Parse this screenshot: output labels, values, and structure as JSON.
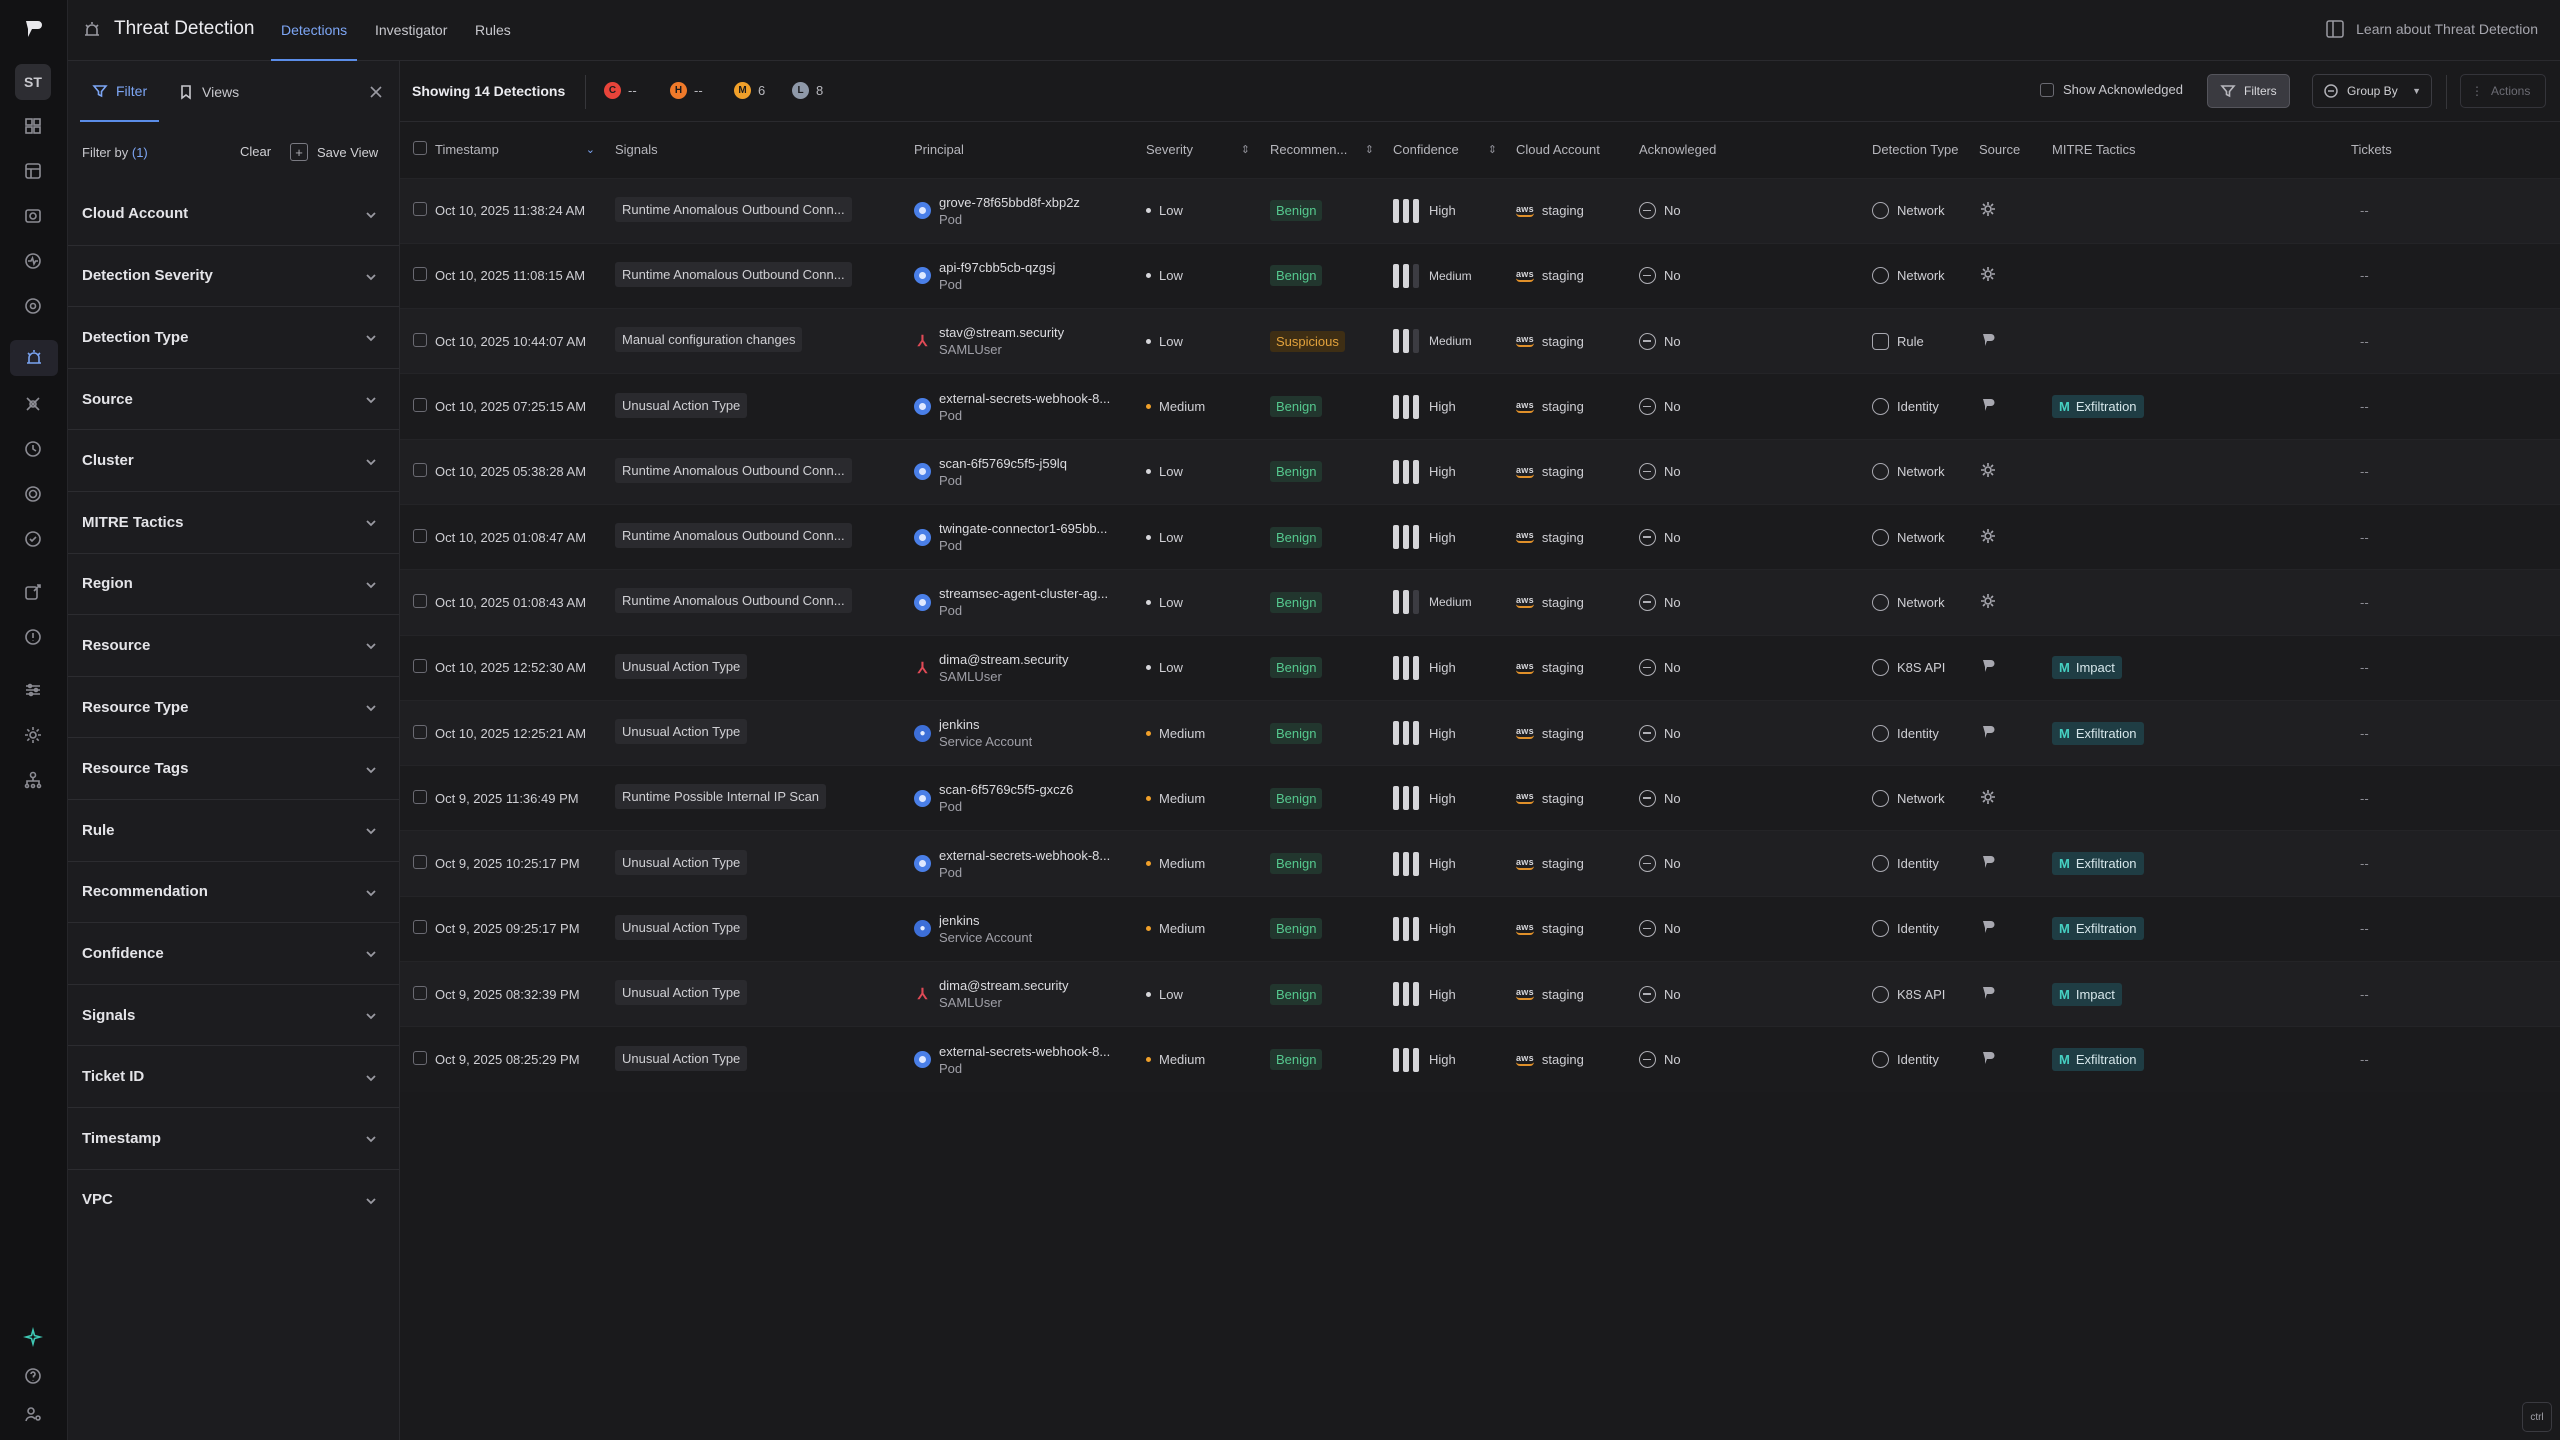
{
  "rail": {
    "avatar": "ST"
  },
  "topbar": {
    "title": "Threat Detection",
    "tabs": [
      "Detections",
      "Investigator",
      "Rules"
    ],
    "learn": "Learn about Threat Detection"
  },
  "panel": {
    "tabs": [
      "Filter",
      "Views"
    ],
    "filter_by_label": "Filter by",
    "filter_by_count": "(1)",
    "clear": "Clear",
    "save_view": "Save View",
    "facets": [
      "Cloud Account",
      "Detection Severity",
      "Detection Type",
      "Source",
      "Cluster",
      "MITRE Tactics",
      "Region",
      "Resource",
      "Resource Type",
      "Resource Tags",
      "Rule",
      "Recommendation",
      "Confidence",
      "Signals",
      "Ticket ID",
      "Timestamp",
      "VPC"
    ]
  },
  "toolbar": {
    "showing": "Showing 14 Detections",
    "severity_counts": [
      {
        "letter": "C",
        "value": "--",
        "color": "#e8443a"
      },
      {
        "letter": "H",
        "value": "--",
        "color": "#f07a2a"
      },
      {
        "letter": "M",
        "value": "6",
        "color": "#f0a02a"
      },
      {
        "letter": "L",
        "value": "8",
        "color": "#8e98a8"
      }
    ],
    "show_acknowledged": "Show Acknowledged",
    "filters": "Filters",
    "group_by": "Group By",
    "actions": "Actions"
  },
  "table": {
    "columns": [
      "Timestamp",
      "Signals",
      "Principal",
      "Severity",
      "Recommen...",
      "Confidence",
      "Cloud Account",
      "Acknowleged",
      "Detection Type",
      "Source",
      "MITRE Tactics",
      "Tickets"
    ],
    "rows": [
      {
        "timestamp": "Oct 10, 2025 11:38:24 AM",
        "signal": "Runtime Anomalous Outbound Conn...",
        "principal": "grove-78f65bbd8f-xbp2z",
        "ptype": "Pod",
        "pkind": "pod",
        "severity": "Low",
        "recommendation": "Benign",
        "confidence": "High",
        "account": "staging",
        "ack": "No",
        "dtype": "Network",
        "source": "runtime",
        "mitre": "",
        "tickets": "--"
      },
      {
        "timestamp": "Oct 10, 2025 11:08:15 AM",
        "signal": "Runtime Anomalous Outbound Conn...",
        "principal": "api-f97cbb5cb-qzgsj",
        "ptype": "Pod",
        "pkind": "pod",
        "severity": "Low",
        "recommendation": "Benign",
        "confidence": "Medium",
        "account": "staging",
        "ack": "No",
        "dtype": "Network",
        "source": "runtime",
        "mitre": "",
        "tickets": "--"
      },
      {
        "timestamp": "Oct 10, 2025 10:44:07 AM",
        "signal": "Manual configuration changes",
        "principal": "stav@stream.security",
        "ptype": "SAMLUser",
        "pkind": "saml",
        "severity": "Low",
        "recommendation": "Suspicious",
        "confidence": "Medium",
        "account": "staging",
        "ack": "No",
        "dtype": "Rule",
        "source": "stream",
        "mitre": "",
        "tickets": "--"
      },
      {
        "timestamp": "Oct 10, 2025 07:25:15 AM",
        "signal": "Unusual Action Type",
        "principal": "external-secrets-webhook-8...",
        "ptype": "Pod",
        "pkind": "pod",
        "severity": "Medium",
        "recommendation": "Benign",
        "confidence": "High",
        "account": "staging",
        "ack": "No",
        "dtype": "Identity",
        "source": "stream",
        "mitre": "Exfiltration",
        "tickets": "--"
      },
      {
        "timestamp": "Oct 10, 2025 05:38:28 AM",
        "signal": "Runtime Anomalous Outbound Conn...",
        "principal": "scan-6f5769c5f5-j59lq",
        "ptype": "Pod",
        "pkind": "pod",
        "severity": "Low",
        "recommendation": "Benign",
        "confidence": "High",
        "account": "staging",
        "ack": "No",
        "dtype": "Network",
        "source": "runtime",
        "mitre": "",
        "tickets": "--"
      },
      {
        "timestamp": "Oct 10, 2025 01:08:47 AM",
        "signal": "Runtime Anomalous Outbound Conn...",
        "principal": "twingate-connector1-695bb...",
        "ptype": "Pod",
        "pkind": "pod",
        "severity": "Low",
        "recommendation": "Benign",
        "confidence": "High",
        "account": "staging",
        "ack": "No",
        "dtype": "Network",
        "source": "runtime",
        "mitre": "",
        "tickets": "--"
      },
      {
        "timestamp": "Oct 10, 2025 01:08:43 AM",
        "signal": "Runtime Anomalous Outbound Conn...",
        "principal": "streamsec-agent-cluster-ag...",
        "ptype": "Pod",
        "pkind": "pod",
        "severity": "Low",
        "recommendation": "Benign",
        "confidence": "Medium",
        "account": "staging",
        "ack": "No",
        "dtype": "Network",
        "source": "runtime",
        "mitre": "",
        "tickets": "--"
      },
      {
        "timestamp": "Oct 10, 2025 12:52:30 AM",
        "signal": "Unusual Action Type",
        "principal": "dima@stream.security",
        "ptype": "SAMLUser",
        "pkind": "saml",
        "severity": "Low",
        "recommendation": "Benign",
        "confidence": "High",
        "account": "staging",
        "ack": "No",
        "dtype": "K8S API",
        "source": "stream",
        "mitre": "Impact",
        "tickets": "--"
      },
      {
        "timestamp": "Oct 10, 2025 12:25:21 AM",
        "signal": "Unusual Action Type",
        "principal": "jenkins",
        "ptype": "Service Account",
        "pkind": "svc",
        "severity": "Medium",
        "recommendation": "Benign",
        "confidence": "High",
        "account": "staging",
        "ack": "No",
        "dtype": "Identity",
        "source": "stream",
        "mitre": "Exfiltration",
        "tickets": "--"
      },
      {
        "timestamp": "Oct 9, 2025 11:36:49 PM",
        "signal": "Runtime Possible Internal IP Scan",
        "principal": "scan-6f5769c5f5-gxcz6",
        "ptype": "Pod",
        "pkind": "pod",
        "severity": "Medium",
        "recommendation": "Benign",
        "confidence": "High",
        "account": "staging",
        "ack": "No",
        "dtype": "Network",
        "source": "runtime",
        "mitre": "",
        "tickets": "--"
      },
      {
        "timestamp": "Oct 9, 2025 10:25:17 PM",
        "signal": "Unusual Action Type",
        "principal": "external-secrets-webhook-8...",
        "ptype": "Pod",
        "pkind": "pod",
        "severity": "Medium",
        "recommendation": "Benign",
        "confidence": "High",
        "account": "staging",
        "ack": "No",
        "dtype": "Identity",
        "source": "stream",
        "mitre": "Exfiltration",
        "tickets": "--"
      },
      {
        "timestamp": "Oct 9, 2025 09:25:17 PM",
        "signal": "Unusual Action Type",
        "principal": "jenkins",
        "ptype": "Service Account",
        "pkind": "svc",
        "severity": "Medium",
        "recommendation": "Benign",
        "confidence": "High",
        "account": "staging",
        "ack": "No",
        "dtype": "Identity",
        "source": "stream",
        "mitre": "Exfiltration",
        "tickets": "--"
      },
      {
        "timestamp": "Oct 9, 2025 08:32:39 PM",
        "signal": "Unusual Action Type",
        "principal": "dima@stream.security",
        "ptype": "SAMLUser",
        "pkind": "saml",
        "severity": "Low",
        "recommendation": "Benign",
        "confidence": "High",
        "account": "staging",
        "ack": "No",
        "dtype": "K8S API",
        "source": "stream",
        "mitre": "Impact",
        "tickets": "--"
      },
      {
        "timestamp": "Oct 9, 2025 08:25:29 PM",
        "signal": "Unusual Action Type",
        "principal": "external-secrets-webhook-8...",
        "ptype": "Pod",
        "pkind": "pod",
        "severity": "Medium",
        "recommendation": "Benign",
        "confidence": "High",
        "account": "staging",
        "ack": "No",
        "dtype": "Identity",
        "source": "stream",
        "mitre": "Exfiltration",
        "tickets": "--"
      }
    ]
  },
  "colors": {
    "accent": "#5b8de8",
    "severity_low": "#d6d6da",
    "severity_medium": "#f0a02a",
    "benign": "#55c88e",
    "suspicious": "#e2a23c",
    "mitre_badge": "#1f3d44"
  },
  "corner": "ctrl"
}
